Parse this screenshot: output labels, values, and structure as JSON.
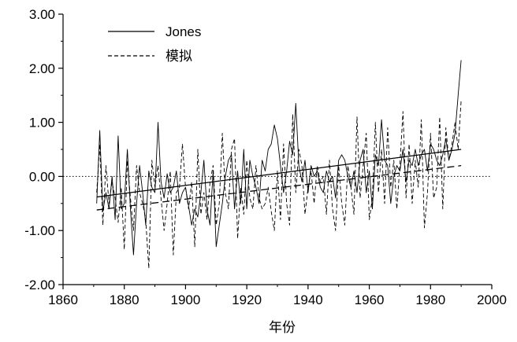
{
  "chart_data": {
    "type": "line",
    "title": "",
    "xlabel": "年份",
    "ylabel": "",
    "xlim": [
      1860,
      2000
    ],
    "ylim": [
      -2.0,
      3.0
    ],
    "x_ticks": [
      1860,
      1880,
      1900,
      1920,
      1940,
      1960,
      1980,
      2000
    ],
    "x_tick_labels": [
      "1860",
      "1880",
      "1900",
      "1920",
      "1940",
      "1960",
      "1980",
      "2000"
    ],
    "y_ticks": [
      -2.0,
      -1.0,
      0.0,
      1.0,
      2.0,
      3.0
    ],
    "y_tick_labels": [
      "-2.00",
      "-1.00",
      "0.00",
      "1.00",
      "2.00",
      "3.00"
    ],
    "grid": false,
    "reference_line": {
      "y": 0.0,
      "style": "dotted"
    },
    "legend": {
      "position": "top-left",
      "entries": [
        {
          "label": "Jones",
          "style": "solid"
        },
        {
          "label": "模拟",
          "style": "dashed"
        }
      ]
    },
    "x": [
      1871,
      1872,
      1873,
      1874,
      1875,
      1876,
      1877,
      1878,
      1879,
      1880,
      1881,
      1882,
      1883,
      1884,
      1885,
      1886,
      1887,
      1888,
      1889,
      1890,
      1891,
      1892,
      1893,
      1894,
      1895,
      1896,
      1897,
      1898,
      1899,
      1900,
      1901,
      1902,
      1903,
      1904,
      1905,
      1906,
      1907,
      1908,
      1909,
      1910,
      1911,
      1912,
      1913,
      1914,
      1915,
      1916,
      1917,
      1918,
      1919,
      1920,
      1921,
      1922,
      1923,
      1924,
      1925,
      1926,
      1927,
      1928,
      1929,
      1930,
      1931,
      1932,
      1933,
      1934,
      1935,
      1936,
      1937,
      1938,
      1939,
      1940,
      1941,
      1942,
      1943,
      1944,
      1945,
      1946,
      1947,
      1948,
      1949,
      1950,
      1951,
      1952,
      1953,
      1954,
      1955,
      1956,
      1957,
      1958,
      1959,
      1960,
      1961,
      1962,
      1963,
      1964,
      1965,
      1966,
      1967,
      1968,
      1969,
      1970,
      1971,
      1972,
      1973,
      1974,
      1975,
      1976,
      1977,
      1978,
      1979,
      1980,
      1981,
      1982,
      1983,
      1984,
      1985,
      1986,
      1987,
      1988,
      1989,
      1990
    ],
    "series": [
      {
        "name": "Jones",
        "style": "solid",
        "values": [
          -0.5,
          0.85,
          -0.65,
          -0.3,
          -0.6,
          0.0,
          -0.8,
          0.75,
          -0.6,
          -0.5,
          0.5,
          -0.6,
          -1.45,
          -0.5,
          0.2,
          -0.3,
          -0.9,
          0.1,
          -0.2,
          -0.3,
          1.0,
          -0.1,
          -0.4,
          0.05,
          -0.3,
          -0.2,
          0.1,
          -0.5,
          -0.3,
          -0.2,
          -0.55,
          -0.9,
          -0.6,
          -0.75,
          -0.3,
          0.3,
          -0.6,
          -0.9,
          0.1,
          -1.3,
          -0.9,
          -0.5,
          0.0,
          0.3,
          0.4,
          -0.6,
          0.1,
          -0.5,
          0.5,
          -0.6,
          0.3,
          0.0,
          -0.2,
          -0.5,
          0.3,
          0.1,
          0.5,
          0.6,
          0.95,
          0.7,
          0.2,
          -0.3,
          0.1,
          0.65,
          0.4,
          1.35,
          0.2,
          -0.1,
          0.3,
          -0.3,
          0.2,
          0.0,
          0.1,
          -0.2,
          -0.3,
          0.1,
          -0.1,
          0.0,
          -0.4,
          0.3,
          0.4,
          0.3,
          0.0,
          -0.2,
          0.1,
          -0.3,
          0.3,
          0.5,
          -0.3,
          0.1,
          -0.6,
          0.4,
          0.2,
          1.05,
          0.3,
          0.2,
          -0.5,
          0.0,
          0.2,
          0.1,
          0.5,
          -0.1,
          0.3,
          0.2,
          0.5,
          0.2,
          0.4,
          0.5,
          0.1,
          0.6,
          0.5,
          0.3,
          0.2,
          0.4,
          0.7,
          0.3,
          0.5,
          0.8,
          1.5,
          2.15
        ]
      },
      {
        "name": "模拟",
        "style": "dashed",
        "values": [
          -0.3,
          0.6,
          -0.9,
          0.2,
          -0.5,
          -0.1,
          -0.4,
          -0.85,
          -0.2,
          -1.35,
          0.3,
          -0.4,
          -1.0,
          0.2,
          -0.3,
          -0.5,
          -0.8,
          -1.7,
          0.3,
          -0.2,
          0.2,
          -0.4,
          -1.0,
          -0.5,
          0.1,
          -1.45,
          -0.3,
          -0.2,
          0.6,
          -0.2,
          -0.6,
          -0.1,
          -1.3,
          0.5,
          -0.7,
          -0.3,
          -0.8,
          -0.1,
          0.2,
          -0.9,
          -0.5,
          0.8,
          -0.3,
          -0.6,
          0.5,
          0.7,
          -1.15,
          -0.2,
          -0.7,
          0.3,
          -0.4,
          -0.6,
          0.2,
          -0.4,
          -0.6,
          -0.5,
          -0.2,
          -0.65,
          -1.0,
          0.1,
          -0.8,
          0.6,
          -0.5,
          -0.9,
          1.15,
          -0.3,
          0.5,
          0.2,
          -0.7,
          -0.2,
          0.1,
          -0.5,
          0.2,
          -0.1,
          0.0,
          -0.7,
          0.3,
          -0.6,
          -1.0,
          0.2,
          -0.5,
          -0.9,
          0.2,
          -0.2,
          -0.7,
          1.1,
          -0.4,
          0.2,
          0.8,
          -0.8,
          -0.4,
          1.0,
          -0.3,
          0.5,
          -0.5,
          0.9,
          -0.2,
          0.3,
          -0.6,
          0.2,
          1.2,
          -0.4,
          0.6,
          -0.5,
          0.3,
          -0.2,
          1.05,
          -0.95,
          -0.3,
          0.8,
          -0.4,
          -0.2,
          1.1,
          -0.6,
          0.9,
          0.3,
          0.6,
          1.0,
          0.5,
          1.4
        ]
      }
    ],
    "trend_lines": [
      {
        "name": "Jones-trend",
        "style": "solid",
        "x": [
          1871,
          1990
        ],
        "y": [
          -0.38,
          0.5
        ]
      },
      {
        "name": "模拟-trend",
        "style": "dashed",
        "x": [
          1871,
          1990
        ],
        "y": [
          -0.62,
          0.2
        ]
      }
    ]
  }
}
